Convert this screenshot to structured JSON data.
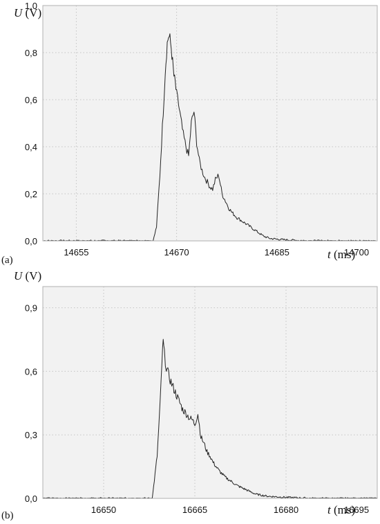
{
  "chart_data": [
    {
      "type": "line",
      "panel_label": "(a)",
      "ylabel_symbol": "U",
      "ylabel_unit": " (V)",
      "xlabel_symbol": "t",
      "xlabel_unit": " (ms)",
      "xlim": [
        14650,
        14700
      ],
      "ylim": [
        0,
        1.0
      ],
      "xticks": [
        14655,
        14670,
        14685,
        14700
      ],
      "xtick_labels": [
        "14655",
        "14670",
        "14685",
        "14700"
      ],
      "yticks": [
        0,
        0.2,
        0.4,
        0.6,
        0.8,
        1.0
      ],
      "ytick_labels": [
        "0,0",
        "0,2",
        "0,4",
        "0,6",
        "0,8",
        "1,0"
      ],
      "grid": true,
      "series": [
        {
          "x": [
            14650,
            14666.5,
            14667,
            14667.5,
            14668,
            14668.3,
            14668.6,
            14668.8,
            14669.0,
            14669.2,
            14669.4,
            14669.6,
            14669.8,
            14670.0,
            14670.3,
            14670.6,
            14671.0,
            14671.4,
            14671.8,
            14672.2,
            14672.6,
            14673.0,
            14673.4,
            14673.8,
            14674.2,
            14674.6,
            14675.0,
            14675.4,
            14675.8,
            14676.3,
            14676.8,
            14677.3,
            14677.8,
            14678.3,
            14679.0,
            14680.0,
            14681.0,
            14682.0,
            14683.0,
            14684.0,
            14686.0,
            14690.0,
            14695.0,
            14700.0
          ],
          "y": [
            0.0,
            0.0,
            0.06,
            0.28,
            0.55,
            0.72,
            0.84,
            0.87,
            0.86,
            0.82,
            0.76,
            0.7,
            0.67,
            0.62,
            0.58,
            0.52,
            0.45,
            0.4,
            0.36,
            0.5,
            0.55,
            0.42,
            0.34,
            0.3,
            0.27,
            0.25,
            0.23,
            0.22,
            0.26,
            0.28,
            0.2,
            0.17,
            0.14,
            0.12,
            0.1,
            0.08,
            0.06,
            0.04,
            0.02,
            0.01,
            0.005,
            0.0,
            0.0,
            0.0
          ]
        }
      ]
    },
    {
      "type": "line",
      "panel_label": "(b)",
      "ylabel_symbol": "U",
      "ylabel_unit": " (V)",
      "xlabel_symbol": "t",
      "xlabel_unit": " (ms)",
      "xlim": [
        16640,
        16695
      ],
      "ylim": [
        0,
        1.0
      ],
      "xticks": [
        16650,
        16665,
        16680,
        16695
      ],
      "xtick_labels": [
        "16650",
        "16665",
        "16680",
        "16695"
      ],
      "yticks": [
        0,
        0.3,
        0.6,
        0.9
      ],
      "ytick_labels": [
        "0,0",
        "0,3",
        "0,6",
        "0,9"
      ],
      "grid": true,
      "series": [
        {
          "x": [
            16640,
            16658.0,
            16658.8,
            16659.3,
            16659.6,
            16659.8,
            16660.0,
            16660.3,
            16660.7,
            16661.2,
            16661.8,
            16662.4,
            16663.0,
            16663.6,
            16664.1,
            16664.6,
            16665.0,
            16665.5,
            16666.0,
            16666.5,
            16667.0,
            16667.5,
            16668.0,
            16668.5,
            16669.0,
            16670.0,
            16671.0,
            16672.0,
            16673.5,
            16675.0,
            16677.0,
            16680.0,
            16685.0,
            16690.0,
            16695.0
          ],
          "y": [
            0.0,
            0.0,
            0.2,
            0.45,
            0.65,
            0.74,
            0.68,
            0.62,
            0.58,
            0.54,
            0.5,
            0.46,
            0.42,
            0.4,
            0.38,
            0.37,
            0.35,
            0.4,
            0.29,
            0.26,
            0.22,
            0.2,
            0.17,
            0.15,
            0.13,
            0.1,
            0.08,
            0.06,
            0.04,
            0.02,
            0.01,
            0.005,
            0.0,
            0.0,
            0.0
          ]
        }
      ]
    }
  ]
}
